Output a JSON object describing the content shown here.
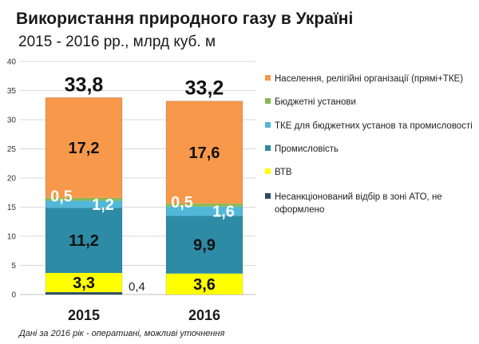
{
  "chart_data": {
    "type": "bar",
    "stacked": true,
    "title": "Використання природного газу в Україні",
    "subtitle": "2015 - 2016 рр., млрд куб. м",
    "categories": [
      "2015",
      "2016"
    ],
    "ylim": [
      0,
      40
    ],
    "yticks": [
      0,
      5,
      10,
      15,
      20,
      25,
      30,
      35,
      40
    ],
    "grid": true,
    "legend_position": "right",
    "series": [
      {
        "name": "Несанкціонований відбір в зоні АТО, не оформлено",
        "color": "#2e4d63",
        "values": [
          0.4,
          0
        ],
        "labels": [
          "0,4",
          ""
        ]
      },
      {
        "name": "ВТВ",
        "color": "#ffff00",
        "values": [
          3.3,
          3.6
        ],
        "labels": [
          "3,3",
          "3,6"
        ]
      },
      {
        "name": "Промисловість",
        "color": "#2e8ba6",
        "values": [
          11.2,
          9.9
        ],
        "labels": [
          "11,2",
          "9,9"
        ]
      },
      {
        "name": "ТКЕ для бюджетних установ та промисловості",
        "color": "#52b8d9",
        "values": [
          1.2,
          1.6
        ],
        "labels": [
          "1,2",
          "1,6"
        ]
      },
      {
        "name": "Бюджетні установи",
        "color": "#8ab855",
        "values": [
          0.5,
          0.5
        ],
        "labels": [
          "0,5",
          "0,5"
        ]
      },
      {
        "name": "Населення, релігійні організації (прямі+ТКЕ)",
        "color": "#f7984b",
        "values": [
          17.2,
          17.6
        ],
        "labels": [
          "17,2",
          "17,6"
        ]
      }
    ],
    "totals": [
      "33,8",
      "33,2"
    ],
    "legend_order": [
      5,
      4,
      3,
      2,
      1,
      0
    ],
    "legend_lines": [
      [
        "Населення, релігійні організації (прямі+ТКЕ)"
      ],
      [
        "Бюджетні установи"
      ],
      [
        "ТКЕ для бюджетних установ та промисловості"
      ],
      [
        "Промисловість"
      ],
      [
        "ВТВ"
      ],
      [
        "Несанкціонований відбір в зоні АТО, не",
        "оформлено"
      ]
    ],
    "note": "Дані за 2016 рік - оперативні, можливі уточнення"
  }
}
